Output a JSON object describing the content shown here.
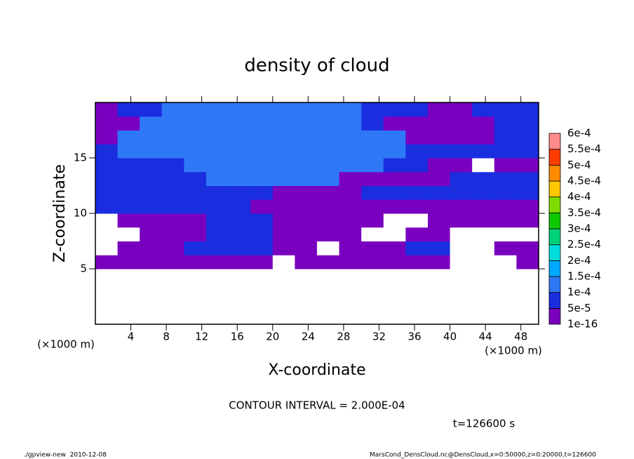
{
  "chart_data": {
    "type": "contour",
    "title": "density of cloud",
    "xlabel": "X-coordinate",
    "ylabel": "Z-coordinate",
    "x_unit": "(×1000 m)",
    "y_unit": "(×1000 m)",
    "contour_interval": "CONTOUR INTERVAL = 2.000E-04",
    "time_label": "t=126600 s",
    "footer_left": "./gpview-new  2010-12-08",
    "footer_right": "MarsCond_DensCloud.nc@DensCloud,x=0:50000,z=0:20000,t=126600",
    "xlim": [
      0,
      50
    ],
    "ylim": [
      0,
      20
    ],
    "xticks": [
      4,
      8,
      12,
      16,
      20,
      24,
      28,
      32,
      36,
      40,
      44,
      48
    ],
    "yticks": [
      5,
      10,
      15
    ],
    "x": [
      1.25,
      3.75,
      6.25,
      8.75,
      11.25,
      13.75,
      16.25,
      18.75,
      21.25,
      23.75,
      26.25,
      28.75,
      31.25,
      33.75,
      36.25,
      38.75,
      41.25,
      43.75,
      46.25,
      48.75
    ],
    "y": [
      0.625,
      1.875,
      3.125,
      4.375,
      5.625,
      6.875,
      8.125,
      9.375,
      10.625,
      11.875,
      13.125,
      14.375,
      15.625,
      16.875,
      18.125,
      19.375
    ],
    "values": [
      [
        0,
        0,
        0,
        0,
        0,
        0,
        0,
        0,
        0,
        0,
        0,
        0,
        0,
        0,
        0,
        0,
        0,
        0,
        0,
        0
      ],
      [
        0,
        0,
        0,
        0,
        0,
        0,
        0,
        0,
        0,
        0,
        0,
        0,
        0,
        0,
        0,
        0,
        0,
        0,
        0,
        0
      ],
      [
        0,
        0,
        0,
        0,
        0,
        0,
        0,
        0,
        0,
        0,
        0,
        0,
        0,
        0,
        0,
        0,
        0,
        0,
        0,
        0
      ],
      [
        0,
        0,
        0,
        0,
        0,
        0,
        0,
        0,
        0,
        0,
        0,
        0,
        0,
        0,
        0,
        0,
        0,
        0,
        0,
        0
      ],
      [
        2e-05,
        2e-05,
        2e-05,
        2e-05,
        2e-05,
        2e-05,
        2e-05,
        2e-05,
        0,
        2e-05,
        2e-05,
        2e-05,
        2e-05,
        2e-05,
        2e-05,
        2e-05,
        0,
        0,
        0,
        2e-05
      ],
      [
        0,
        2e-05,
        2e-05,
        2e-05,
        7e-05,
        7e-05,
        7e-05,
        7e-05,
        2e-05,
        2e-05,
        0,
        2e-05,
        2e-05,
        2e-05,
        7e-05,
        7e-05,
        0,
        0,
        2e-05,
        2e-05
      ],
      [
        0,
        0,
        2e-05,
        2e-05,
        2e-05,
        7e-05,
        7e-05,
        7e-05,
        2e-05,
        2e-05,
        2e-05,
        2e-05,
        0,
        0,
        2e-05,
        2e-05,
        0,
        0,
        0,
        0
      ],
      [
        0,
        2e-05,
        2e-05,
        2e-05,
        2e-05,
        7e-05,
        7e-05,
        7e-05,
        2e-05,
        2e-05,
        2e-05,
        2e-05,
        2e-05,
        0,
        0,
        2e-05,
        2e-05,
        2e-05,
        2e-05,
        2e-05
      ],
      [
        7e-05,
        7e-05,
        7e-05,
        7e-05,
        7e-05,
        7e-05,
        7e-05,
        2e-05,
        2e-05,
        2e-05,
        2e-05,
        2e-05,
        2e-05,
        2e-05,
        2e-05,
        2e-05,
        2e-05,
        2e-05,
        2e-05,
        2e-05
      ],
      [
        7e-05,
        7e-05,
        7e-05,
        7e-05,
        7e-05,
        7e-05,
        7e-05,
        7e-05,
        2e-05,
        2e-05,
        2e-05,
        2e-05,
        7e-05,
        7e-05,
        7e-05,
        7e-05,
        7e-05,
        7e-05,
        7e-05,
        7e-05
      ],
      [
        7e-05,
        7e-05,
        7e-05,
        7e-05,
        7e-05,
        0.00012,
        0.00012,
        0.00012,
        0.00012,
        0.00012,
        0.00012,
        2e-05,
        2e-05,
        2e-05,
        2e-05,
        2e-05,
        7e-05,
        7e-05,
        7e-05,
        7e-05
      ],
      [
        7e-05,
        7e-05,
        7e-05,
        7e-05,
        0.00012,
        0.00012,
        0.00012,
        0.00012,
        0.00012,
        0.00012,
        0.00012,
        0.00012,
        0.00012,
        7e-05,
        7e-05,
        2e-05,
        2e-05,
        0,
        2e-05,
        2e-05
      ],
      [
        7e-05,
        0.00012,
        0.00012,
        0.00012,
        0.00012,
        0.00012,
        0.00012,
        0.00012,
        0.00012,
        0.00012,
        0.00012,
        0.00012,
        0.00012,
        0.00012,
        7e-05,
        7e-05,
        7e-05,
        7e-05,
        7e-05,
        7e-05
      ],
      [
        2e-05,
        0.00012,
        0.00012,
        0.00012,
        0.00012,
        0.00012,
        0.00012,
        0.00012,
        0.00012,
        0.00012,
        0.00012,
        0.00012,
        0.00012,
        0.00012,
        2e-05,
        2e-05,
        2e-05,
        2e-05,
        7e-05,
        7e-05
      ],
      [
        2e-05,
        2e-05,
        0.00012,
        0.00012,
        0.00012,
        0.00012,
        0.00012,
        0.00012,
        0.00012,
        0.00012,
        0.00012,
        0.00012,
        7e-05,
        2e-05,
        2e-05,
        2e-05,
        2e-05,
        2e-05,
        7e-05,
        7e-05
      ],
      [
        2e-05,
        7e-05,
        7e-05,
        0.00012,
        0.00012,
        0.00012,
        0.00012,
        0.00012,
        0.00012,
        0.00012,
        0.00012,
        0.00012,
        7e-05,
        7e-05,
        7e-05,
        2e-05,
        2e-05,
        7e-05,
        7e-05,
        7e-05
      ]
    ],
    "levels": [
      {
        "value": 1e-16,
        "label": "1e-16"
      },
      {
        "value": 5e-05,
        "label": "5e-5"
      },
      {
        "value": 0.0001,
        "label": "1e-4"
      },
      {
        "value": 0.00015,
        "label": "1.5e-4"
      },
      {
        "value": 0.0002,
        "label": "2e-4"
      },
      {
        "value": 0.00025,
        "label": "2.5e-4"
      },
      {
        "value": 0.0003,
        "label": "3e-4"
      },
      {
        "value": 0.00035,
        "label": "3.5e-4"
      },
      {
        "value": 0.0004,
        "label": "4e-4"
      },
      {
        "value": 0.00045,
        "label": "4.5e-4"
      },
      {
        "value": 0.0005,
        "label": "5e-4"
      },
      {
        "value": 0.00055,
        "label": "5.5e-4"
      },
      {
        "value": 0.0006,
        "label": "6e-4"
      }
    ],
    "level_colors": [
      "#7a00c0",
      "#1a2ee0",
      "#2f78f5",
      "#00a8ff",
      "#00dcdc",
      "#00d27a",
      "#10c800",
      "#80dc00",
      "#ffc800",
      "#ff8c00",
      "#ff3c00",
      "#ff8c8c"
    ]
  }
}
